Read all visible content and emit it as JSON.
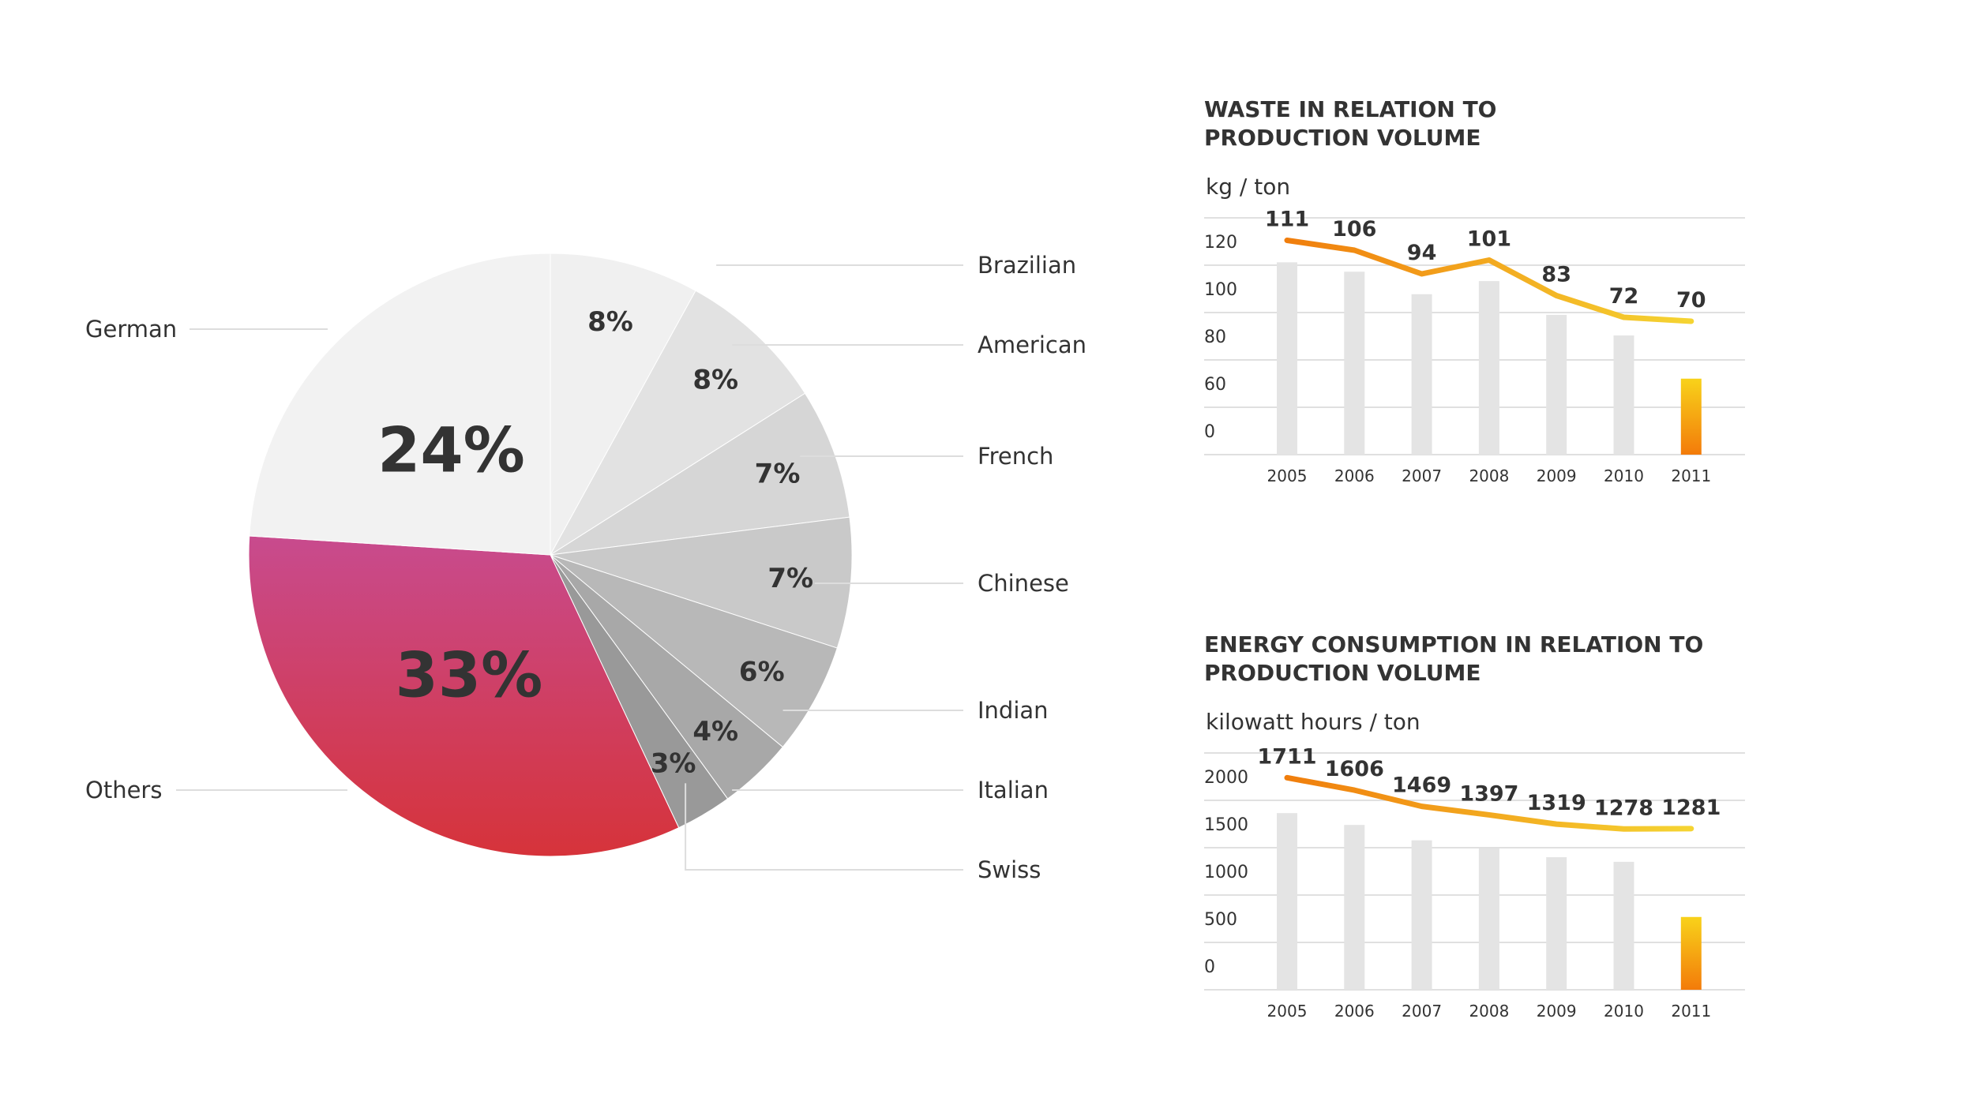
{
  "chart_data": [
    {
      "type": "pie",
      "slices": [
        {
          "label": "Brazilian",
          "value": 8,
          "value_label": "8%",
          "color": "#f0f0f0"
        },
        {
          "label": "American",
          "value": 8,
          "value_label": "8%",
          "color": "#e2e2e2"
        },
        {
          "label": "French",
          "value": 7,
          "value_label": "7%",
          "color": "#d6d6d6"
        },
        {
          "label": "Chinese",
          "value": 7,
          "value_label": "7%",
          "color": "#c9c9c9"
        },
        {
          "label": "Indian",
          "value": 6,
          "value_label": "6%",
          "color": "#b8b8b8"
        },
        {
          "label": "Italian",
          "value": 4,
          "value_label": "4%",
          "color": "#a8a8a8"
        },
        {
          "label": "Swiss",
          "value": 3,
          "value_label": "3%",
          "color": "#999999"
        },
        {
          "label": "Others",
          "value": 33,
          "value_label": "33%",
          "color_top": "#c84b8e",
          "color_bottom": "#d6333a"
        },
        {
          "label": "German",
          "value": 24,
          "value_label": "24%",
          "color": "#f2f2f2"
        }
      ]
    },
    {
      "type": "bar-line",
      "title_lines": [
        "WASTE IN RELATION TO",
        "PRODUCTION VOLUME"
      ],
      "unit_label": "kg / ton",
      "y_tick_labels": [
        "120",
        "100",
        "80",
        "60",
        "0"
      ],
      "categories": [
        "2005",
        "2006",
        "2007",
        "2008",
        "2009",
        "2010",
        "2011"
      ],
      "values": [
        111,
        106,
        94,
        101,
        83,
        72,
        70
      ],
      "value_labels": [
        "111",
        "106",
        "94",
        "101",
        "83",
        "72",
        "70"
      ],
      "axis_max": 120,
      "highlight_index": 6
    },
    {
      "type": "bar-line",
      "title_lines": [
        "ENERGY CONSUMPTION IN RELATION TO",
        "PRODUCTION VOLUME"
      ],
      "unit_label": "kilowatt hours / ton",
      "y_tick_labels": [
        "2000",
        "1500",
        "1000",
        "500",
        "0"
      ],
      "categories": [
        "2005",
        "2006",
        "2007",
        "2008",
        "2009",
        "2010",
        "2011"
      ],
      "values": [
        1711,
        1606,
        1469,
        1397,
        1319,
        1278,
        1281
      ],
      "value_labels": [
        "1711",
        "1606",
        "1469",
        "1397",
        "1319",
        "1278",
        "1281"
      ],
      "axis_max": 2000,
      "highlight_index": 6
    }
  ],
  "colors": {
    "text": "#333333",
    "grid": "#e0e0e0",
    "bar": "#e4e4e4",
    "line_start": "#f07c0c",
    "line_end": "#f5d432",
    "highlight_top": "#f8d21a",
    "highlight_bottom": "#f37b0a"
  }
}
